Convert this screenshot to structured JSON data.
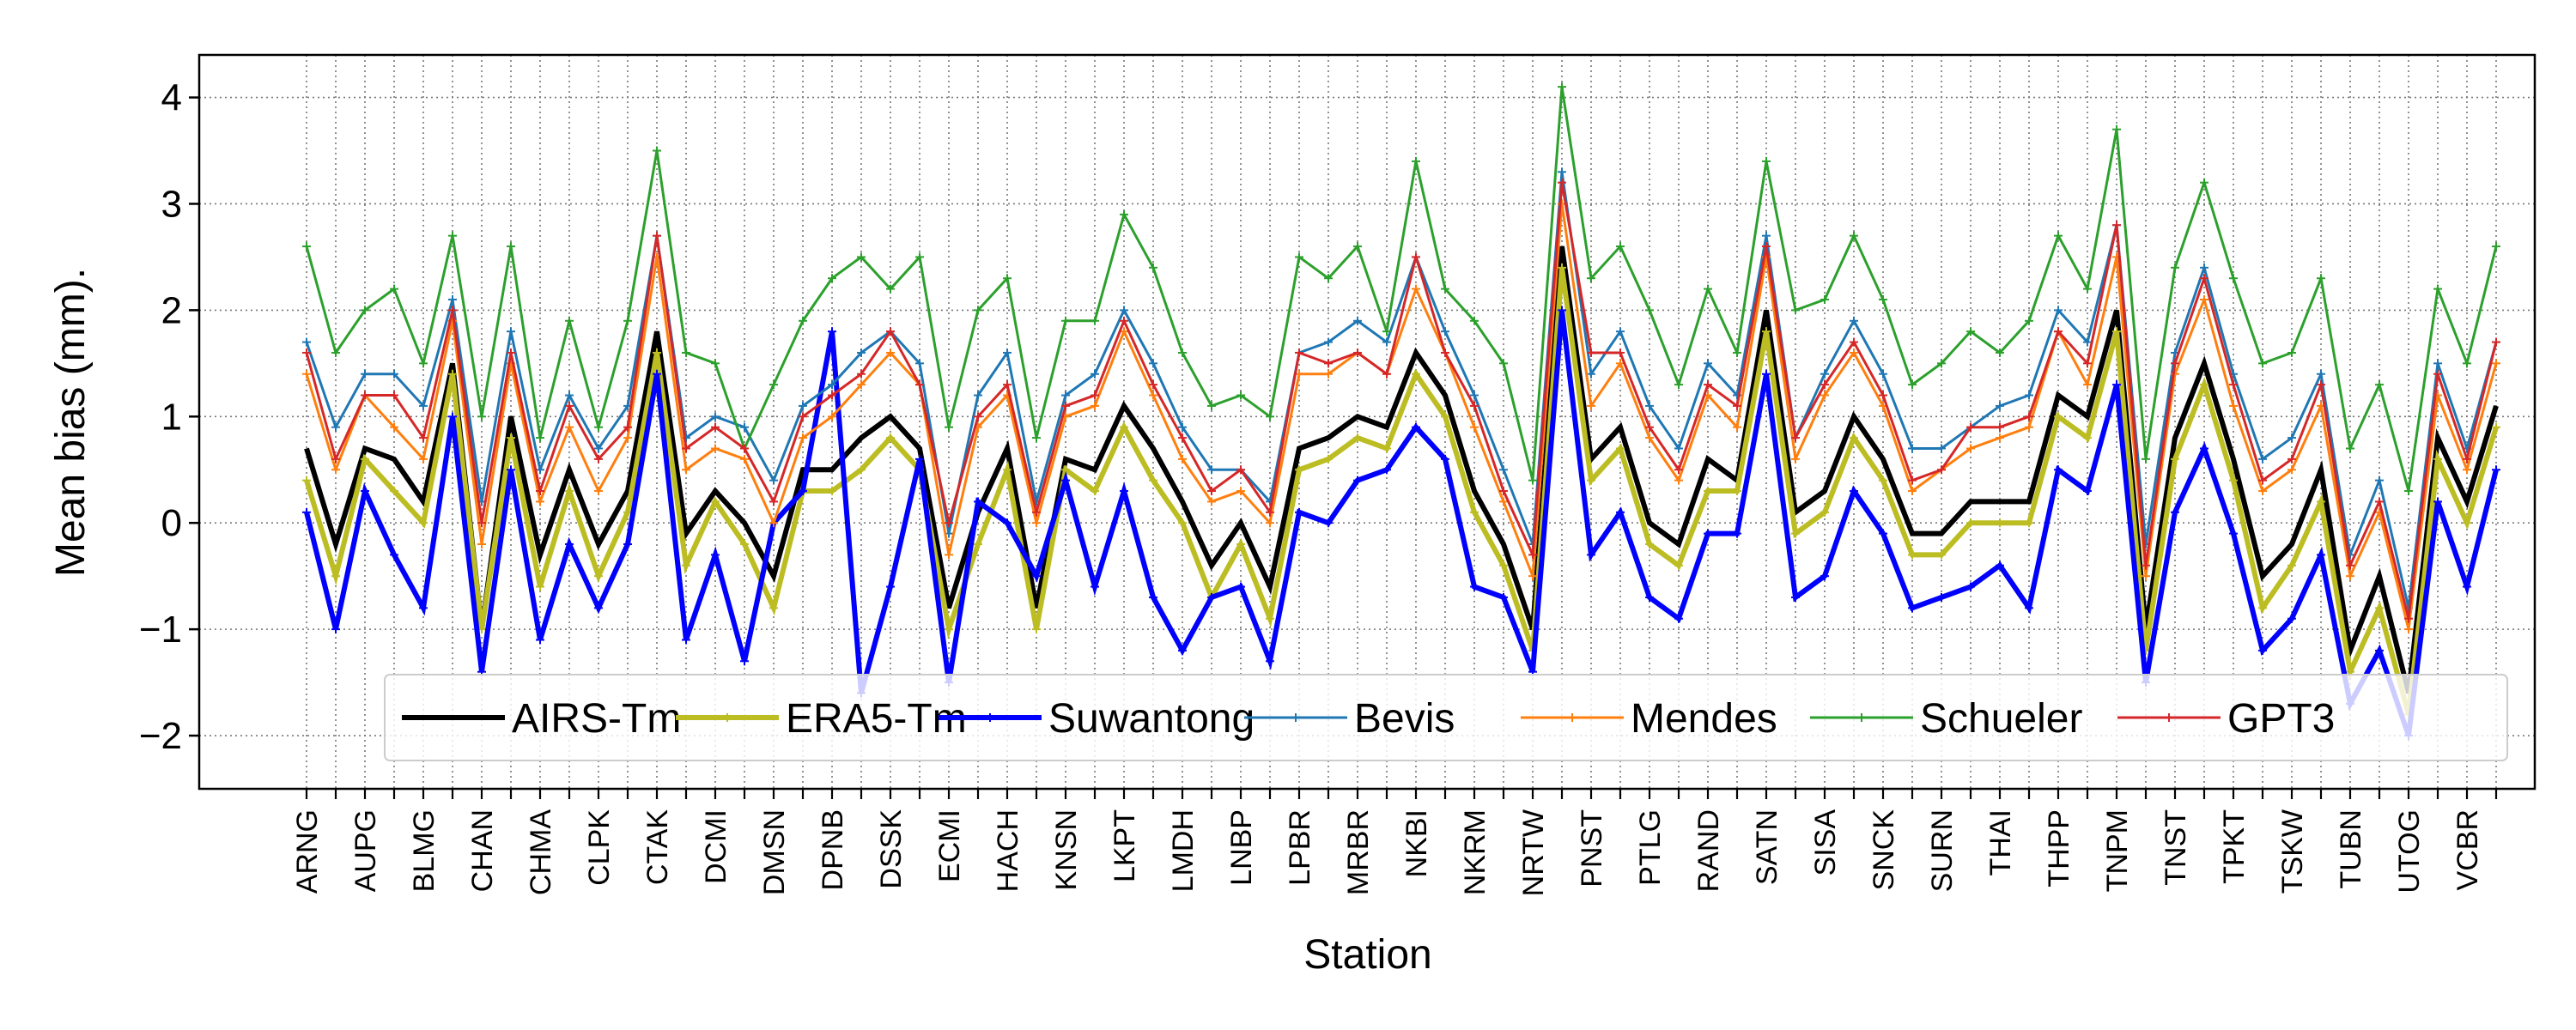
{
  "chart_data": {
    "type": "line",
    "xlabel": "Station",
    "ylabel": "Mean bias (mm).",
    "ylim": [
      -2.5,
      4.4
    ],
    "yticks": [
      -2,
      -1,
      0,
      1,
      2,
      3,
      4
    ],
    "grid": true,
    "legend_position": "bottom",
    "xtick_labels": [
      "ARNG",
      "AUPG",
      "BLMG",
      "CHAN",
      "CHMA",
      "CLPK",
      "CTAK",
      "DCMI",
      "DMSN",
      "DPNB",
      "DSSK",
      "ECMI",
      "HACH",
      "KNSN",
      "LKPT",
      "LMDH",
      "LNBP",
      "LPBR",
      "MRBR",
      "NKBI",
      "NKRM",
      "NRTW",
      "PNST",
      "PTLG",
      "RAND",
      "SATN",
      "SISA",
      "SNCK",
      "SURN",
      "THAI",
      "THPP",
      "TNPM",
      "TNST",
      "TPKT",
      "TSKW",
      "TUBN",
      "UTOG",
      "VCBR"
    ],
    "x": [
      1,
      2,
      3,
      4,
      5,
      6,
      7,
      8,
      9,
      10,
      11,
      12,
      13,
      14,
      15,
      16,
      17,
      18,
      19,
      20,
      21,
      22,
      23,
      24,
      25,
      26,
      27,
      28,
      29,
      30,
      31,
      32,
      33,
      34,
      35,
      36,
      37,
      38,
      39,
      40,
      41,
      42,
      43,
      44,
      45,
      46,
      47,
      48,
      49,
      50,
      51,
      52,
      53,
      54,
      55,
      56,
      57,
      58,
      59,
      60,
      61,
      62,
      63,
      64,
      65,
      66,
      67,
      68,
      69,
      70,
      71,
      72,
      73,
      74,
      75,
      76
    ],
    "series": [
      {
        "name": "AIRS-Tm",
        "color": "#000000",
        "marker": "none",
        "values": [
          0.7,
          -0.2,
          0.7,
          0.6,
          0.2,
          1.5,
          -1.0,
          1.0,
          -0.3,
          0.5,
          -0.2,
          0.3,
          1.8,
          -0.1,
          0.3,
          0.0,
          -0.5,
          0.5,
          0.5,
          0.8,
          1.0,
          0.7,
          -0.8,
          0.1,
          0.7,
          -0.8,
          0.6,
          0.5,
          1.1,
          0.7,
          0.2,
          -0.4,
          0.0,
          -0.6,
          0.7,
          0.8,
          1.0,
          0.9,
          1.6,
          1.2,
          0.3,
          -0.2,
          -1.0,
          2.6,
          0.6,
          0.9,
          0.0,
          -0.2,
          0.6,
          0.4,
          2.0,
          0.1,
          0.3,
          1.0,
          0.6,
          -0.1,
          -0.1,
          0.2,
          0.2,
          0.2,
          1.2,
          1.0,
          2.0,
          -1.0,
          0.8,
          1.5,
          0.6,
          -0.5,
          -0.2,
          0.5,
          -1.2,
          -0.5,
          -1.6,
          0.8,
          0.2,
          1.1
        ]
      },
      {
        "name": "ERA5-Tm",
        "color": "#bcbd22",
        "marker": "+",
        "values": [
          0.4,
          -0.5,
          0.6,
          0.3,
          0.0,
          1.4,
          -1.0,
          0.8,
          -0.6,
          0.3,
          -0.5,
          0.1,
          1.6,
          -0.4,
          0.2,
          -0.2,
          -0.8,
          0.3,
          0.3,
          0.5,
          0.8,
          0.5,
          -1.0,
          -0.2,
          0.5,
          -1.0,
          0.5,
          0.3,
          0.9,
          0.4,
          0.0,
          -0.7,
          -0.2,
          -0.9,
          0.5,
          0.6,
          0.8,
          0.7,
          1.4,
          1.0,
          0.1,
          -0.4,
          -1.2,
          2.4,
          0.4,
          0.7,
          -0.2,
          -0.4,
          0.3,
          0.3,
          1.8,
          -0.1,
          0.1,
          0.8,
          0.4,
          -0.3,
          -0.3,
          0.0,
          0.0,
          0.0,
          1.0,
          0.8,
          1.8,
          -1.2,
          0.6,
          1.3,
          0.4,
          -0.8,
          -0.4,
          0.2,
          -1.4,
          -0.8,
          -1.8,
          0.6,
          0.0,
          0.9
        ]
      },
      {
        "name": "Suwantong",
        "color": "#0000ff",
        "marker": "+",
        "values": [
          0.1,
          -1.0,
          0.3,
          -0.3,
          -0.8,
          1.0,
          -1.4,
          0.5,
          -1.1,
          -0.2,
          -0.8,
          -0.2,
          1.4,
          -1.1,
          -0.3,
          -1.3,
          0.0,
          0.3,
          1.8,
          -1.6,
          -0.6,
          0.6,
          -1.5,
          0.2,
          0.0,
          -0.5,
          0.4,
          -0.6,
          0.3,
          -0.7,
          -1.2,
          -0.7,
          -0.6,
          -1.3,
          0.1,
          0.0,
          0.4,
          0.5,
          0.9,
          0.6,
          -0.6,
          -0.7,
          -1.4,
          2.0,
          -0.3,
          0.1,
          -0.7,
          -0.9,
          -0.1,
          -0.1,
          1.4,
          -0.7,
          -0.5,
          0.3,
          -0.1,
          -0.8,
          -0.7,
          -0.6,
          -0.4,
          -0.8,
          0.5,
          0.3,
          1.3,
          -1.5,
          0.1,
          0.7,
          -0.1,
          -1.2,
          -0.9,
          -0.3,
          -1.7,
          -1.2,
          -2.0,
          0.2,
          -0.6,
          0.5
        ]
      },
      {
        "name": "Bevis",
        "color": "#1f77b4",
        "marker": "+",
        "values": [
          1.7,
          0.9,
          1.4,
          1.4,
          1.1,
          2.1,
          0.2,
          1.8,
          0.5,
          1.2,
          0.7,
          1.1,
          2.7,
          0.8,
          1.0,
          0.9,
          0.4,
          1.1,
          1.3,
          1.6,
          1.8,
          1.5,
          -0.1,
          1.2,
          1.6,
          0.2,
          1.2,
          1.4,
          2.0,
          1.5,
          0.9,
          0.5,
          0.5,
          0.2,
          1.6,
          1.7,
          1.9,
          1.7,
          2.5,
          1.8,
          1.2,
          0.5,
          -0.2,
          3.3,
          1.4,
          1.8,
          1.1,
          0.7,
          1.5,
          1.2,
          2.7,
          0.8,
          1.4,
          1.9,
          1.4,
          0.7,
          0.7,
          0.9,
          1.1,
          1.2,
          2.0,
          1.7,
          2.8,
          -0.2,
          1.6,
          2.4,
          1.4,
          0.6,
          0.8,
          1.4,
          -0.3,
          0.4,
          -0.8,
          1.5,
          0.7,
          1.7
        ]
      },
      {
        "name": "Mendes",
        "color": "#ff7f0e",
        "marker": "+",
        "values": [
          1.4,
          0.5,
          1.2,
          0.9,
          0.6,
          1.9,
          -0.2,
          1.5,
          0.2,
          0.9,
          0.3,
          0.8,
          2.5,
          0.5,
          0.7,
          0.6,
          0.0,
          0.8,
          1.0,
          1.3,
          1.6,
          1.3,
          -0.3,
          0.9,
          1.2,
          0.0,
          1.0,
          1.1,
          1.8,
          1.2,
          0.6,
          0.2,
          0.3,
          0.0,
          1.4,
          1.4,
          1.6,
          1.4,
          2.2,
          1.6,
          0.9,
          0.2,
          -0.5,
          3.0,
          1.1,
          1.5,
          0.8,
          0.4,
          1.2,
          0.9,
          2.5,
          0.6,
          1.2,
          1.6,
          1.1,
          0.3,
          0.5,
          0.7,
          0.8,
          0.9,
          1.8,
          1.3,
          2.5,
          -0.5,
          1.4,
          2.1,
          1.1,
          0.3,
          0.5,
          1.1,
          -0.5,
          0.1,
          -1.0,
          1.2,
          0.5,
          1.5
        ]
      },
      {
        "name": "Schueler",
        "color": "#2ca02c",
        "marker": "+",
        "values": [
          2.6,
          1.6,
          2.0,
          2.2,
          1.5,
          2.7,
          1.0,
          2.6,
          0.8,
          1.9,
          0.9,
          1.9,
          3.5,
          1.6,
          1.5,
          0.7,
          1.3,
          1.9,
          2.3,
          2.5,
          2.2,
          2.5,
          0.9,
          2.0,
          2.3,
          0.8,
          1.9,
          1.9,
          2.9,
          2.4,
          1.6,
          1.1,
          1.2,
          1.0,
          2.5,
          2.3,
          2.6,
          1.8,
          3.4,
          2.2,
          1.9,
          1.5,
          0.4,
          4.1,
          2.3,
          2.6,
          2.0,
          1.3,
          2.2,
          1.6,
          3.4,
          2.0,
          2.1,
          2.7,
          2.1,
          1.3,
          1.5,
          1.8,
          1.6,
          1.9,
          2.7,
          2.2,
          3.7,
          0.6,
          2.4,
          3.2,
          2.3,
          1.5,
          1.6,
          2.3,
          0.7,
          1.3,
          0.3,
          2.2,
          1.5,
          2.6
        ]
      },
      {
        "name": "GPT3",
        "color": "#d62728",
        "marker": "+",
        "values": [
          1.6,
          0.6,
          1.2,
          1.2,
          0.8,
          2.0,
          0.0,
          1.6,
          0.3,
          1.1,
          0.6,
          0.9,
          2.7,
          0.7,
          0.9,
          0.7,
          0.2,
          1.0,
          1.2,
          1.4,
          1.8,
          1.3,
          0.0,
          1.0,
          1.3,
          0.1,
          1.1,
          1.2,
          1.9,
          1.3,
          0.8,
          0.3,
          0.5,
          0.1,
          1.6,
          1.5,
          1.6,
          1.4,
          2.5,
          1.6,
          1.1,
          0.3,
          -0.3,
          3.2,
          1.6,
          1.6,
          0.9,
          0.5,
          1.3,
          1.1,
          2.6,
          0.8,
          1.3,
          1.7,
          1.2,
          0.4,
          0.5,
          0.9,
          0.9,
          1.0,
          1.8,
          1.5,
          2.8,
          -0.4,
          1.5,
          2.3,
          1.3,
          0.4,
          0.6,
          1.3,
          -0.4,
          0.2,
          -0.9,
          1.4,
          0.6,
          1.7
        ]
      }
    ],
    "legend": [
      "AIRS-Tm",
      "ERA5-Tm",
      "Suwantong",
      "Bevis",
      "Mendes",
      "Schueler",
      "GPT3"
    ]
  }
}
